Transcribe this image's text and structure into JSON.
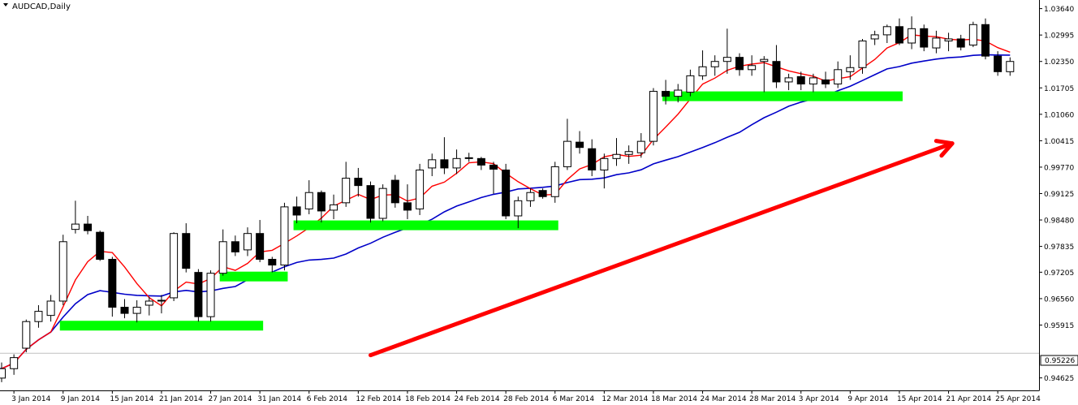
{
  "window": {
    "symbol_label": "AUDCAD,Daily",
    "current_price_label": "0.95226"
  },
  "colors": {
    "background": "#ffffff",
    "axis": "#000000",
    "candle_bull_fill": "#ffffff",
    "candle_bear_fill": "#000000",
    "fast_ma": "#ff0000",
    "slow_ma": "#0000c8",
    "support_zone": "#00ff00",
    "trend_arrow": "#ff0000",
    "current_price_line": "#c0c0c0"
  },
  "chart_data": {
    "type": "candlestick",
    "title": "AUDCAD,Daily",
    "ylim": [
      0.9432,
      1.0385
    ],
    "y_ticks": [
      "1.03640",
      "1.02995",
      "1.02350",
      "1.01705",
      "1.01060",
      "1.00415",
      "0.99770",
      "0.99125",
      "0.98480",
      "0.97835",
      "0.97205",
      "0.96560",
      "0.95915",
      "0.95226",
      "0.94625"
    ],
    "x_ticks": [
      "3 Jan 2014",
      "9 Jan 2014",
      "15 Jan 2014",
      "21 Jan 2014",
      "27 Jan 2014",
      "31 Jan 2014",
      "6 Feb 2014",
      "12 Feb 2014",
      "18 Feb 2014",
      "24 Feb 2014",
      "28 Feb 2014",
      "6 Mar 2014",
      "12 Mar 2014",
      "18 Mar 2014",
      "24 Mar 2014",
      "28 Mar 2014",
      "3 Apr 2014",
      "9 Apr 2014",
      "15 Apr 2014",
      "21 Apr 2014",
      "25 Apr 2014"
    ],
    "current_price": 0.95226,
    "candles": [
      {
        "date": "2 Jan 2014",
        "open": 0.9462,
        "high": 0.95,
        "low": 0.9452,
        "close": 0.9485
      },
      {
        "date": "3 Jan 2014",
        "open": 0.9485,
        "high": 0.952,
        "low": 0.947,
        "close": 0.9512
      },
      {
        "date": "6 Jan 2014",
        "open": 0.9535,
        "high": 0.9605,
        "low": 0.9525,
        "close": 0.96
      },
      {
        "date": "7 Jan 2014",
        "open": 0.96,
        "high": 0.964,
        "low": 0.9585,
        "close": 0.9625
      },
      {
        "date": "8 Jan 2014",
        "open": 0.9615,
        "high": 0.9665,
        "low": 0.96,
        "close": 0.965
      },
      {
        "date": "9 Jan 2014",
        "open": 0.965,
        "high": 0.9812,
        "low": 0.964,
        "close": 0.9795
      },
      {
        "date": "10 Jan 2014",
        "open": 0.9825,
        "high": 0.9895,
        "low": 0.9815,
        "close": 0.9838
      },
      {
        "date": "13 Jan 2014",
        "open": 0.9838,
        "high": 0.9858,
        "low": 0.9813,
        "close": 0.9822
      },
      {
        "date": "14 Jan 2014",
        "open": 0.9818,
        "high": 0.9822,
        "low": 0.9748,
        "close": 0.9752
      },
      {
        "date": "15 Jan 2014",
        "open": 0.9752,
        "high": 0.9758,
        "low": 0.9612,
        "close": 0.9635
      },
      {
        "date": "16 Jan 2014",
        "open": 0.9635,
        "high": 0.9655,
        "low": 0.9608,
        "close": 0.962
      },
      {
        "date": "17 Jan 2014",
        "open": 0.962,
        "high": 0.9652,
        "low": 0.9598,
        "close": 0.9635
      },
      {
        "date": "20 Jan 2014",
        "open": 0.964,
        "high": 0.966,
        "low": 0.9615,
        "close": 0.965
      },
      {
        "date": "21 Jan 2014",
        "open": 0.965,
        "high": 0.9665,
        "low": 0.962,
        "close": 0.9652
      },
      {
        "date": "22 Jan 2014",
        "open": 0.9658,
        "high": 0.9818,
        "low": 0.965,
        "close": 0.9815
      },
      {
        "date": "23 Jan 2014",
        "open": 0.9815,
        "high": 0.984,
        "low": 0.972,
        "close": 0.973
      },
      {
        "date": "24 Jan 2014",
        "open": 0.972,
        "high": 0.9728,
        "low": 0.96,
        "close": 0.9612
      },
      {
        "date": "27 Jan 2014",
        "open": 0.9612,
        "high": 0.9725,
        "low": 0.96,
        "close": 0.9718
      },
      {
        "date": "28 Jan 2014",
        "open": 0.9718,
        "high": 0.9825,
        "low": 0.9712,
        "close": 0.9795
      },
      {
        "date": "29 Jan 2014",
        "open": 0.9795,
        "high": 0.981,
        "low": 0.976,
        "close": 0.977
      },
      {
        "date": "30 Jan 2014",
        "open": 0.9775,
        "high": 0.983,
        "low": 0.976,
        "close": 0.9815
      },
      {
        "date": "31 Jan 2014",
        "open": 0.9815,
        "high": 0.9848,
        "low": 0.9745,
        "close": 0.9752
      },
      {
        "date": "3 Feb 2014",
        "open": 0.9752,
        "high": 0.9758,
        "low": 0.972,
        "close": 0.9738
      },
      {
        "date": "4 Feb 2014",
        "open": 0.9738,
        "high": 0.989,
        "low": 0.9725,
        "close": 0.988
      },
      {
        "date": "5 Feb 2014",
        "open": 0.988,
        "high": 0.9905,
        "low": 0.984,
        "close": 0.986
      },
      {
        "date": "6 Feb 2014",
        "open": 0.9875,
        "high": 0.9945,
        "low": 0.9862,
        "close": 0.9915
      },
      {
        "date": "7 Feb 2014",
        "open": 0.9915,
        "high": 0.992,
        "low": 0.9842,
        "close": 0.987
      },
      {
        "date": "10 Feb 2014",
        "open": 0.9872,
        "high": 0.991,
        "low": 0.985,
        "close": 0.9885
      },
      {
        "date": "11 Feb 2014",
        "open": 0.989,
        "high": 0.999,
        "low": 0.988,
        "close": 0.995
      },
      {
        "date": "12 Feb 2014",
        "open": 0.995,
        "high": 0.9975,
        "low": 0.9905,
        "close": 0.9932
      },
      {
        "date": "13 Feb 2014",
        "open": 0.9932,
        "high": 0.9942,
        "low": 0.9842,
        "close": 0.9852
      },
      {
        "date": "14 Feb 2014",
        "open": 0.9852,
        "high": 0.9935,
        "low": 0.9845,
        "close": 0.9925
      },
      {
        "date": "17 Feb 2014",
        "open": 0.9945,
        "high": 0.9958,
        "low": 0.9878,
        "close": 0.989
      },
      {
        "date": "18 Feb 2014",
        "open": 0.989,
        "high": 0.9935,
        "low": 0.985,
        "close": 0.9872
      },
      {
        "date": "19 Feb 2014",
        "open": 0.9875,
        "high": 0.9985,
        "low": 0.986,
        "close": 0.997
      },
      {
        "date": "20 Feb 2014",
        "open": 0.9975,
        "high": 1.001,
        "low": 0.9955,
        "close": 0.9995
      },
      {
        "date": "21 Feb 2014",
        "open": 0.9995,
        "high": 1.005,
        "low": 0.996,
        "close": 0.9975
      },
      {
        "date": "24 Feb 2014",
        "open": 0.9975,
        "high": 1.002,
        "low": 0.996,
        "close": 0.9998
      },
      {
        "date": "25 Feb 2014",
        "open": 0.9998,
        "high": 1.0012,
        "low": 0.999,
        "close": 1.0
      },
      {
        "date": "26 Feb 2014",
        "open": 0.9998,
        "high": 1.0002,
        "low": 0.997,
        "close": 0.9982
      },
      {
        "date": "27 Feb 2014",
        "open": 0.9982,
        "high": 0.999,
        "low": 0.9912,
        "close": 0.9972
      },
      {
        "date": "28 Feb 2014",
        "open": 0.997,
        "high": 0.9985,
        "low": 0.985,
        "close": 0.9858
      },
      {
        "date": "3 Mar 2014",
        "open": 0.9858,
        "high": 0.9905,
        "low": 0.9828,
        "close": 0.9895
      },
      {
        "date": "4 Mar 2014",
        "open": 0.9895,
        "high": 0.9925,
        "low": 0.988,
        "close": 0.9915
      },
      {
        "date": "5 Mar 2014",
        "open": 0.992,
        "high": 0.9925,
        "low": 0.99,
        "close": 0.9905
      },
      {
        "date": "6 Mar 2014",
        "open": 0.9905,
        "high": 0.999,
        "low": 0.989,
        "close": 0.9978
      },
      {
        "date": "7 Mar 2014",
        "open": 0.9978,
        "high": 1.0095,
        "low": 0.997,
        "close": 1.004
      },
      {
        "date": "10 Mar 2014",
        "open": 1.0038,
        "high": 1.0065,
        "low": 1.001,
        "close": 1.0025
      },
      {
        "date": "11 Mar 2014",
        "open": 1.0022,
        "high": 1.0045,
        "low": 0.9955,
        "close": 0.997
      },
      {
        "date": "12 Mar 2014",
        "open": 0.997,
        "high": 1.001,
        "low": 0.9925,
        "close": 0.9998
      },
      {
        "date": "13 Mar 2014",
        "open": 0.9998,
        "high": 1.0048,
        "low": 0.998,
        "close": 1.0008
      },
      {
        "date": "14 Mar 2014",
        "open": 1.0008,
        "high": 1.003,
        "low": 0.9985,
        "close": 1.0015
      },
      {
        "date": "17 Mar 2014",
        "open": 1.0012,
        "high": 1.006,
        "low": 1.0,
        "close": 1.004
      },
      {
        "date": "18 Mar 2014",
        "open": 1.004,
        "high": 1.017,
        "low": 1.003,
        "close": 1.0162
      },
      {
        "date": "19 Mar 2014",
        "open": 1.0162,
        "high": 1.019,
        "low": 1.013,
        "close": 1.015
      },
      {
        "date": "20 Mar 2014",
        "open": 1.015,
        "high": 1.018,
        "low": 1.0135,
        "close": 1.0165
      },
      {
        "date": "21 Mar 2014",
        "open": 1.016,
        "high": 1.0215,
        "low": 1.015,
        "close": 1.02
      },
      {
        "date": "24 Mar 2014",
        "open": 1.02,
        "high": 1.0262,
        "low": 1.019,
        "close": 1.0222
      },
      {
        "date": "25 Mar 2014",
        "open": 1.0222,
        "high": 1.025,
        "low": 1.02,
        "close": 1.0235
      },
      {
        "date": "26 Mar 2014",
        "open": 1.0235,
        "high": 1.0315,
        "low": 1.0205,
        "close": 1.0245
      },
      {
        "date": "27 Mar 2014",
        "open": 1.0245,
        "high": 1.0255,
        "low": 1.02,
        "close": 1.0215
      },
      {
        "date": "28 Mar 2014",
        "open": 1.0215,
        "high": 1.025,
        "low": 1.02,
        "close": 1.0225
      },
      {
        "date": "31 Mar 2014",
        "open": 1.0235,
        "high": 1.0248,
        "low": 1.016,
        "close": 1.024
      },
      {
        "date": "1 Apr 2014",
        "open": 1.0235,
        "high": 1.0275,
        "low": 1.017,
        "close": 1.0185
      },
      {
        "date": "2 Apr 2014",
        "open": 1.0185,
        "high": 1.0205,
        "low": 1.0165,
        "close": 1.0195
      },
      {
        "date": "3 Apr 2014",
        "open": 1.0198,
        "high": 1.021,
        "low": 1.0165,
        "close": 1.018
      },
      {
        "date": "4 Apr 2014",
        "open": 1.018,
        "high": 1.0205,
        "low": 1.016,
        "close": 1.0195
      },
      {
        "date": "7 Apr 2014",
        "open": 1.019,
        "high": 1.021,
        "low": 1.017,
        "close": 1.018
      },
      {
        "date": "8 Apr 2014",
        "open": 1.018,
        "high": 1.0235,
        "low": 1.017,
        "close": 1.0215
      },
      {
        "date": "9 Apr 2014",
        "open": 1.021,
        "high": 1.025,
        "low": 1.019,
        "close": 1.022
      },
      {
        "date": "10 Apr 2014",
        "open": 1.022,
        "high": 1.029,
        "low": 1.0205,
        "close": 1.0285
      },
      {
        "date": "11 Apr 2014",
        "open": 1.029,
        "high": 1.031,
        "low": 1.0275,
        "close": 1.03
      },
      {
        "date": "14 Apr 2014",
        "open": 1.03,
        "high": 1.0325,
        "low": 1.028,
        "close": 1.032
      },
      {
        "date": "15 Apr 2014",
        "open": 1.032,
        "high": 1.034,
        "low": 1.0275,
        "close": 1.028
      },
      {
        "date": "16 Apr 2014",
        "open": 1.028,
        "high": 1.0345,
        "low": 1.0265,
        "close": 1.0315
      },
      {
        "date": "17 Apr 2014",
        "open": 1.0315,
        "high": 1.0325,
        "low": 1.026,
        "close": 1.027
      },
      {
        "date": "18 Apr 2014",
        "open": 1.0268,
        "high": 1.031,
        "low": 1.0255,
        "close": 1.0292
      },
      {
        "date": "21 Apr 2014",
        "open": 1.0285,
        "high": 1.0305,
        "low": 1.026,
        "close": 1.029
      },
      {
        "date": "22 Apr 2014",
        "open": 1.029,
        "high": 1.03,
        "low": 1.0262,
        "close": 1.027
      },
      {
        "date": "23 Apr 2014",
        "open": 1.0275,
        "high": 1.0332,
        "low": 1.027,
        "close": 1.0325
      },
      {
        "date": "24 Apr 2014",
        "open": 1.0325,
        "high": 1.034,
        "low": 1.024,
        "close": 1.0248
      },
      {
        "date": "25 Apr 2014",
        "open": 1.0248,
        "high": 1.026,
        "low": 1.02,
        "close": 1.021
      },
      {
        "date": "28 Apr 2014",
        "open": 1.021,
        "high": 1.0245,
        "low": 1.02,
        "close": 1.0235
      }
    ],
    "support_zones": [
      {
        "from": "9 Jan 2014",
        "to": "31 Jan 2014",
        "price": 0.959
      },
      {
        "from": "28 Jan 2014",
        "to": "4 Feb 2014",
        "price": 0.971
      },
      {
        "from": "5 Feb 2014",
        "to": "6 Mar 2014",
        "price": 0.9835
      },
      {
        "from": "19 Mar 2014",
        "to": "15 Apr 2014",
        "price": 1.015
      }
    ],
    "trend_arrow": {
      "from": {
        "date": "13 Feb 2014",
        "price": 0.9518
      },
      "to": {
        "date": "16 Apr 2014",
        "price": 1.0035
      }
    }
  }
}
